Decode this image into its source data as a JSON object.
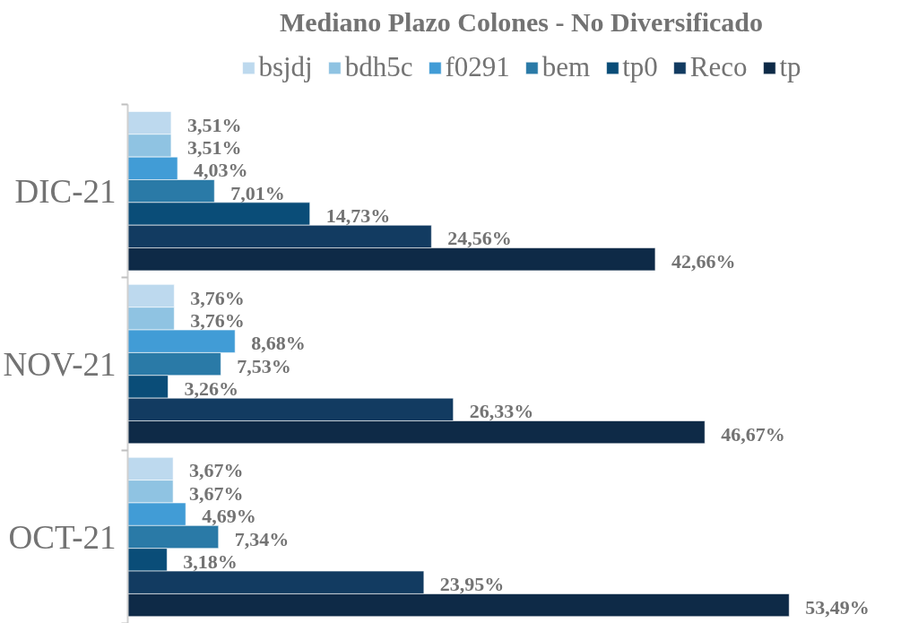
{
  "chart_data": {
    "type": "bar",
    "orientation": "horizontal",
    "title": "Mediano Plazo Colones - No Diversificado",
    "categories": [
      "DIC-21",
      "NOV-21",
      "OCT-21"
    ],
    "series": [
      {
        "name": "bsjdj",
        "color": "#bdd9ee",
        "values": [
          3.51,
          3.76,
          3.67
        ],
        "value_labels": [
          "3,51%",
          "3,76%",
          "3,67%"
        ]
      },
      {
        "name": "bdh5c",
        "color": "#8fc3e2",
        "values": [
          3.51,
          3.76,
          3.67
        ],
        "value_labels": [
          "3,51%",
          "3,76%",
          "3,67%"
        ]
      },
      {
        "name": "f0291",
        "color": "#419cd6",
        "values": [
          4.03,
          8.68,
          4.69
        ],
        "value_labels": [
          "4,03%",
          "8,68%",
          "4,69%"
        ]
      },
      {
        "name": "bem",
        "color": "#2a7aa7",
        "values": [
          7.01,
          7.53,
          7.34
        ],
        "value_labels": [
          "7,01%",
          "7,53%",
          "7,34%"
        ]
      },
      {
        "name": "tp0",
        "color": "#0a4d78",
        "values": [
          14.73,
          3.26,
          3.18
        ],
        "value_labels": [
          "14,73%",
          "3,26%",
          "3,18%"
        ]
      },
      {
        "name": "Reco",
        "color": "#123b61",
        "values": [
          24.56,
          26.33,
          23.95
        ],
        "value_labels": [
          "24,56%",
          "26,33%",
          "23,95%"
        ]
      },
      {
        "name": "tp",
        "color": "#0e2a47",
        "values": [
          42.66,
          46.67,
          53.49
        ],
        "value_labels": [
          "42,66%",
          "46,67%",
          "53,49%"
        ]
      }
    ],
    "legend": "top",
    "tick_labels": "y"
  }
}
